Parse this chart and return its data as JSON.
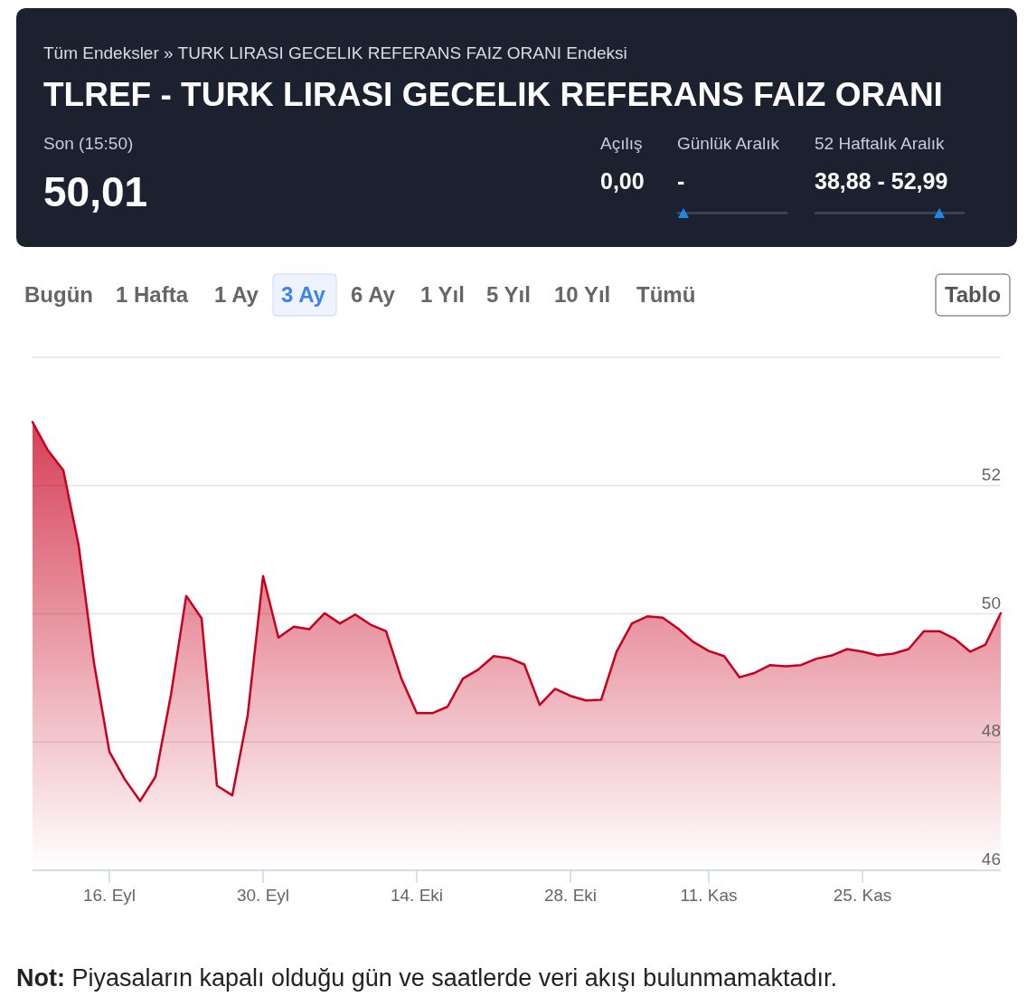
{
  "chart_data": {
    "type": "area",
    "title": "TLREF - TURK LIRASI GECELIK REFERANS FAIZ ORANI",
    "subtitle": "Tüm Endeksler »   TURK LIRASI GECELIK REFERANS FAIZ ORANI Endeksi",
    "categories": [
      null,
      null,
      null,
      null,
      null,
      "16. Eyl",
      null,
      null,
      null,
      null,
      null,
      null,
      null,
      null,
      null,
      "30. Eyl",
      null,
      null,
      null,
      null,
      null,
      null,
      null,
      null,
      null,
      "14. Eki",
      null,
      null,
      null,
      null,
      null,
      null,
      null,
      null,
      null,
      "28. Eki",
      null,
      null,
      null,
      null,
      null,
      null,
      null,
      null,
      "11. Kas",
      null,
      null,
      null,
      null,
      null,
      null,
      null,
      null,
      null,
      "25. Kas",
      null,
      null,
      null,
      null,
      null,
      null,
      null,
      null,
      null
    ],
    "series": [
      {
        "color": "#c8001e",
        "values": [
          52.99,
          52.55,
          52.24,
          51.07,
          49.23,
          47.85,
          47.42,
          47.08,
          47.46,
          48.73,
          50.28,
          49.93,
          47.32,
          47.17,
          48.42,
          50.59,
          49.63,
          49.8,
          49.76,
          50.01,
          49.85,
          49.99,
          49.83,
          49.73,
          48.99,
          48.45,
          48.45,
          48.55,
          48.99,
          49.13,
          49.34,
          49.31,
          49.21,
          48.58,
          48.83,
          48.72,
          48.65,
          48.66,
          49.41,
          49.85,
          49.96,
          49.94,
          49.77,
          49.56,
          49.42,
          49.34,
          49.01,
          49.08,
          49.2,
          49.18,
          49.2,
          49.3,
          49.35,
          49.45,
          49.41,
          49.35,
          49.38,
          49.45,
          49.73,
          49.73,
          49.61,
          49.41,
          49.52,
          50.01
        ]
      }
    ],
    "ylim": [
      46,
      54
    ],
    "yticks": [
      46,
      48,
      50,
      52,
      {
        "value": 54,
        "label": null
      }
    ],
    "grid": "y",
    "annotations": [
      "Son (15:50)",
      "50,01",
      "Açılış",
      "0,00",
      "Günlük Aralık",
      "-",
      "52 Haftalık Aralık",
      "38,88 - 52,99",
      "Bugün",
      "1 Hafta",
      "1 Ay",
      "3 Ay",
      "6 Ay",
      "1 Yıl",
      "5 Yıl",
      "10 Yıl",
      "Tümü",
      "Tablo",
      "Not:",
      "Piyasaların kapalı olduğu gün ve saatlerde veri akışı bulunmamaktadır."
    ]
  }
}
